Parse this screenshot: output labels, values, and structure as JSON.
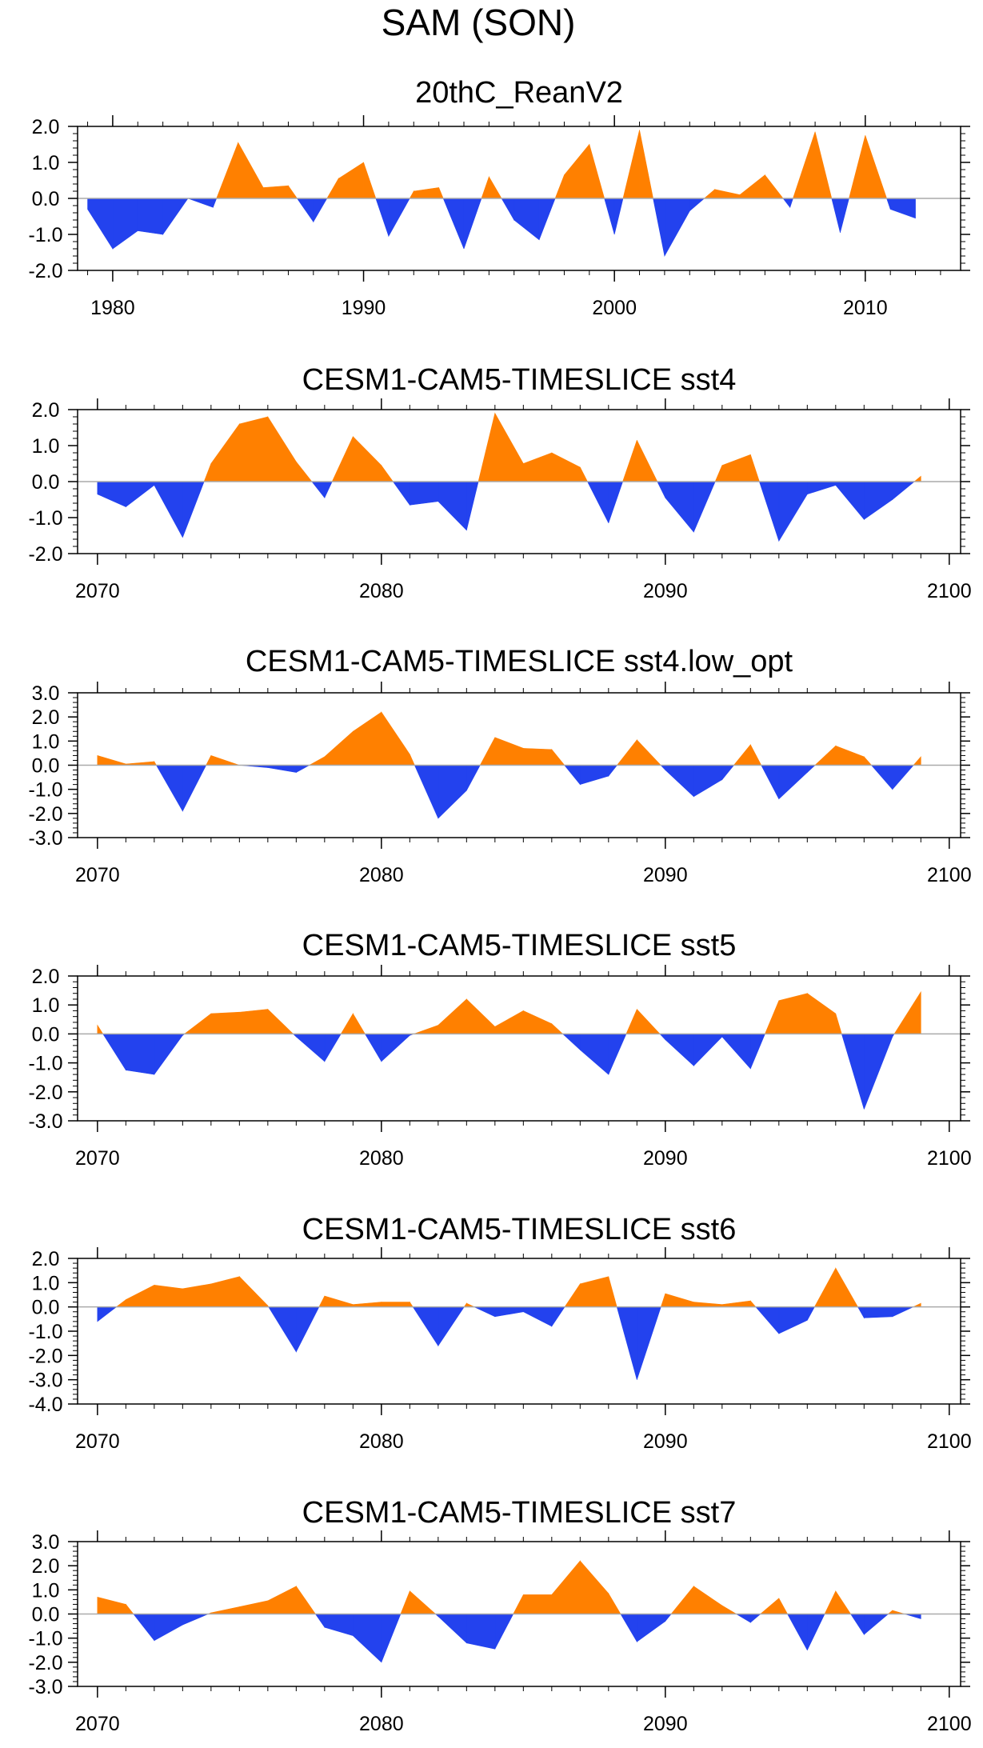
{
  "figure": {
    "title": "SAM (SON)",
    "colors": {
      "positive": "#FF8000",
      "negative": "#2342EE",
      "axis": "#000000",
      "zero_line": "#AAAAAA"
    }
  },
  "chart_data": [
    {
      "type": "area",
      "title": "20thC_ReanV2",
      "x": [
        1979,
        1980,
        1981,
        1982,
        1983,
        1984,
        1985,
        1986,
        1987,
        1988,
        1989,
        1990,
        1991,
        1992,
        1993,
        1994,
        1995,
        1996,
        1997,
        1998,
        1999,
        2000,
        2001,
        2002,
        2003,
        2004,
        2005,
        2006,
        2007,
        2008,
        2009,
        2010,
        2011,
        2012
      ],
      "values": [
        -0.3,
        -1.4,
        -0.9,
        -1.0,
        0.0,
        -0.25,
        1.55,
        0.3,
        0.35,
        -0.65,
        0.55,
        1.0,
        -1.05,
        0.2,
        0.3,
        -1.4,
        0.6,
        -0.6,
        -1.15,
        0.65,
        1.5,
        -1.0,
        1.9,
        -1.6,
        -0.35,
        0.25,
        0.1,
        0.65,
        -0.25,
        1.85,
        -0.95,
        1.75,
        -0.3,
        -0.55
      ],
      "xlim": [
        1978.6,
        2013.8
      ],
      "ylim": [
        -2.0,
        2.0
      ],
      "xticks": [
        1980,
        1990,
        2000,
        2010
      ],
      "yticks": [
        "2.0",
        "1.0",
        "0.0",
        "-1.0",
        "-2.0"
      ]
    },
    {
      "type": "area",
      "title": "CESM1-CAM5-TIMESLICE sst4",
      "x": [
        2070,
        2071,
        2072,
        2073,
        2074,
        2075,
        2076,
        2077,
        2078,
        2079,
        2080,
        2081,
        2082,
        2083,
        2084,
        2085,
        2086,
        2087,
        2088,
        2089,
        2090,
        2091,
        2092,
        2093,
        2094,
        2095,
        2096,
        2097,
        2098,
        2099
      ],
      "values": [
        -0.35,
        -0.7,
        -0.1,
        -1.55,
        0.5,
        1.6,
        1.8,
        0.55,
        -0.45,
        1.25,
        0.45,
        -0.65,
        -0.55,
        -1.35,
        1.9,
        0.5,
        0.8,
        0.4,
        -1.15,
        1.15,
        -0.45,
        -1.4,
        0.45,
        0.75,
        -1.65,
        -0.35,
        -0.1,
        -1.05,
        -0.5,
        0.15
      ],
      "xlim": [
        2069.3,
        2100.4
      ],
      "ylim": [
        -2.0,
        2.0
      ],
      "xticks": [
        2070,
        2080,
        2090,
        2100
      ],
      "yticks": [
        "2.0",
        "1.0",
        "0.0",
        "-1.0",
        "-2.0"
      ]
    },
    {
      "type": "area",
      "title": "CESM1-CAM5-TIMESLICE sst4.low_opt",
      "x": [
        2070,
        2071,
        2072,
        2073,
        2074,
        2075,
        2076,
        2077,
        2078,
        2079,
        2080,
        2081,
        2082,
        2083,
        2084,
        2085,
        2086,
        2087,
        2088,
        2089,
        2090,
        2091,
        2092,
        2093,
        2094,
        2095,
        2096,
        2097,
        2098,
        2099
      ],
      "values": [
        0.4,
        0.05,
        0.15,
        -1.9,
        0.4,
        0.0,
        -0.1,
        -0.3,
        0.35,
        1.4,
        2.2,
        0.45,
        -2.2,
        -1.05,
        1.15,
        0.7,
        0.65,
        -0.8,
        -0.45,
        1.05,
        -0.2,
        -1.3,
        -0.6,
        0.85,
        -1.4,
        -0.3,
        0.8,
        0.35,
        -1.0,
        0.35
      ],
      "xlim": [
        2069.3,
        2100.4
      ],
      "ylim": [
        -3.0,
        3.0
      ],
      "xticks": [
        2070,
        2080,
        2090,
        2100
      ],
      "yticks": [
        "3.0",
        "2.0",
        "1.0",
        "0.0",
        "-1.0",
        "-2.0",
        "-3.0"
      ]
    },
    {
      "type": "area",
      "title": "CESM1-CAM5-TIMESLICE sst5",
      "x": [
        2070,
        2071,
        2072,
        2073,
        2074,
        2075,
        2076,
        2077,
        2078,
        2079,
        2080,
        2081,
        2082,
        2083,
        2084,
        2085,
        2086,
        2087,
        2088,
        2089,
        2090,
        2091,
        2092,
        2093,
        2094,
        2095,
        2096,
        2097,
        2098,
        2099
      ],
      "values": [
        0.3,
        -1.25,
        -1.4,
        -0.05,
        0.7,
        0.75,
        0.85,
        -0.1,
        -0.95,
        0.7,
        -0.95,
        -0.05,
        0.3,
        1.2,
        0.25,
        0.8,
        0.35,
        -0.55,
        -1.4,
        0.85,
        -0.2,
        -1.1,
        -0.1,
        -1.2,
        1.15,
        1.4,
        0.7,
        -2.6,
        -0.1,
        1.45
      ],
      "xlim": [
        2069.3,
        2100.4
      ],
      "ylim": [
        -3.0,
        2.0
      ],
      "xticks": [
        2070,
        2080,
        2090,
        2100
      ],
      "yticks": [
        "2.0",
        "1.0",
        "0.0",
        "-1.0",
        "-2.0",
        "-3.0"
      ]
    },
    {
      "type": "area",
      "title": "CESM1-CAM5-TIMESLICE sst6",
      "x": [
        2070,
        2071,
        2072,
        2073,
        2074,
        2075,
        2076,
        2077,
        2078,
        2079,
        2080,
        2081,
        2082,
        2083,
        2084,
        2085,
        2086,
        2087,
        2088,
        2089,
        2090,
        2091,
        2092,
        2093,
        2094,
        2095,
        2096,
        2097,
        2098,
        2099
      ],
      "values": [
        -0.6,
        0.3,
        0.9,
        0.75,
        0.95,
        1.25,
        0.05,
        -1.85,
        0.45,
        0.1,
        0.2,
        0.2,
        -1.6,
        0.15,
        -0.4,
        -0.2,
        -0.8,
        0.95,
        1.25,
        -3.0,
        0.55,
        0.2,
        0.1,
        0.25,
        -1.1,
        -0.55,
        1.6,
        -0.45,
        -0.4,
        0.15
      ],
      "xlim": [
        2069.3,
        2100.4
      ],
      "ylim": [
        -4.0,
        2.0
      ],
      "xticks": [
        2070,
        2080,
        2090,
        2100
      ],
      "yticks": [
        "2.0",
        "1.0",
        "0.0",
        "-1.0",
        "-2.0",
        "-3.0",
        "-4.0"
      ]
    },
    {
      "type": "area",
      "title": "CESM1-CAM5-TIMESLICE sst7",
      "x": [
        2070,
        2071,
        2072,
        2073,
        2074,
        2075,
        2076,
        2077,
        2078,
        2079,
        2080,
        2081,
        2082,
        2083,
        2084,
        2085,
        2086,
        2087,
        2088,
        2089,
        2090,
        2091,
        2092,
        2093,
        2094,
        2095,
        2096,
        2097,
        2098,
        2099
      ],
      "values": [
        0.7,
        0.4,
        -1.1,
        -0.45,
        0.05,
        0.3,
        0.55,
        1.15,
        -0.55,
        -0.9,
        -2.0,
        0.95,
        -0.1,
        -1.2,
        -1.45,
        0.8,
        0.8,
        2.2,
        0.85,
        -1.15,
        -0.3,
        1.15,
        0.35,
        -0.35,
        0.65,
        -1.5,
        0.95,
        -0.85,
        0.15,
        -0.2
      ],
      "xlim": [
        2069.3,
        2100.4
      ],
      "ylim": [
        -3.0,
        3.0
      ],
      "xticks": [
        2070,
        2080,
        2090,
        2100
      ],
      "yticks": [
        "3.0",
        "2.0",
        "1.0",
        "0.0",
        "-1.0",
        "-2.0",
        "-3.0"
      ]
    }
  ]
}
